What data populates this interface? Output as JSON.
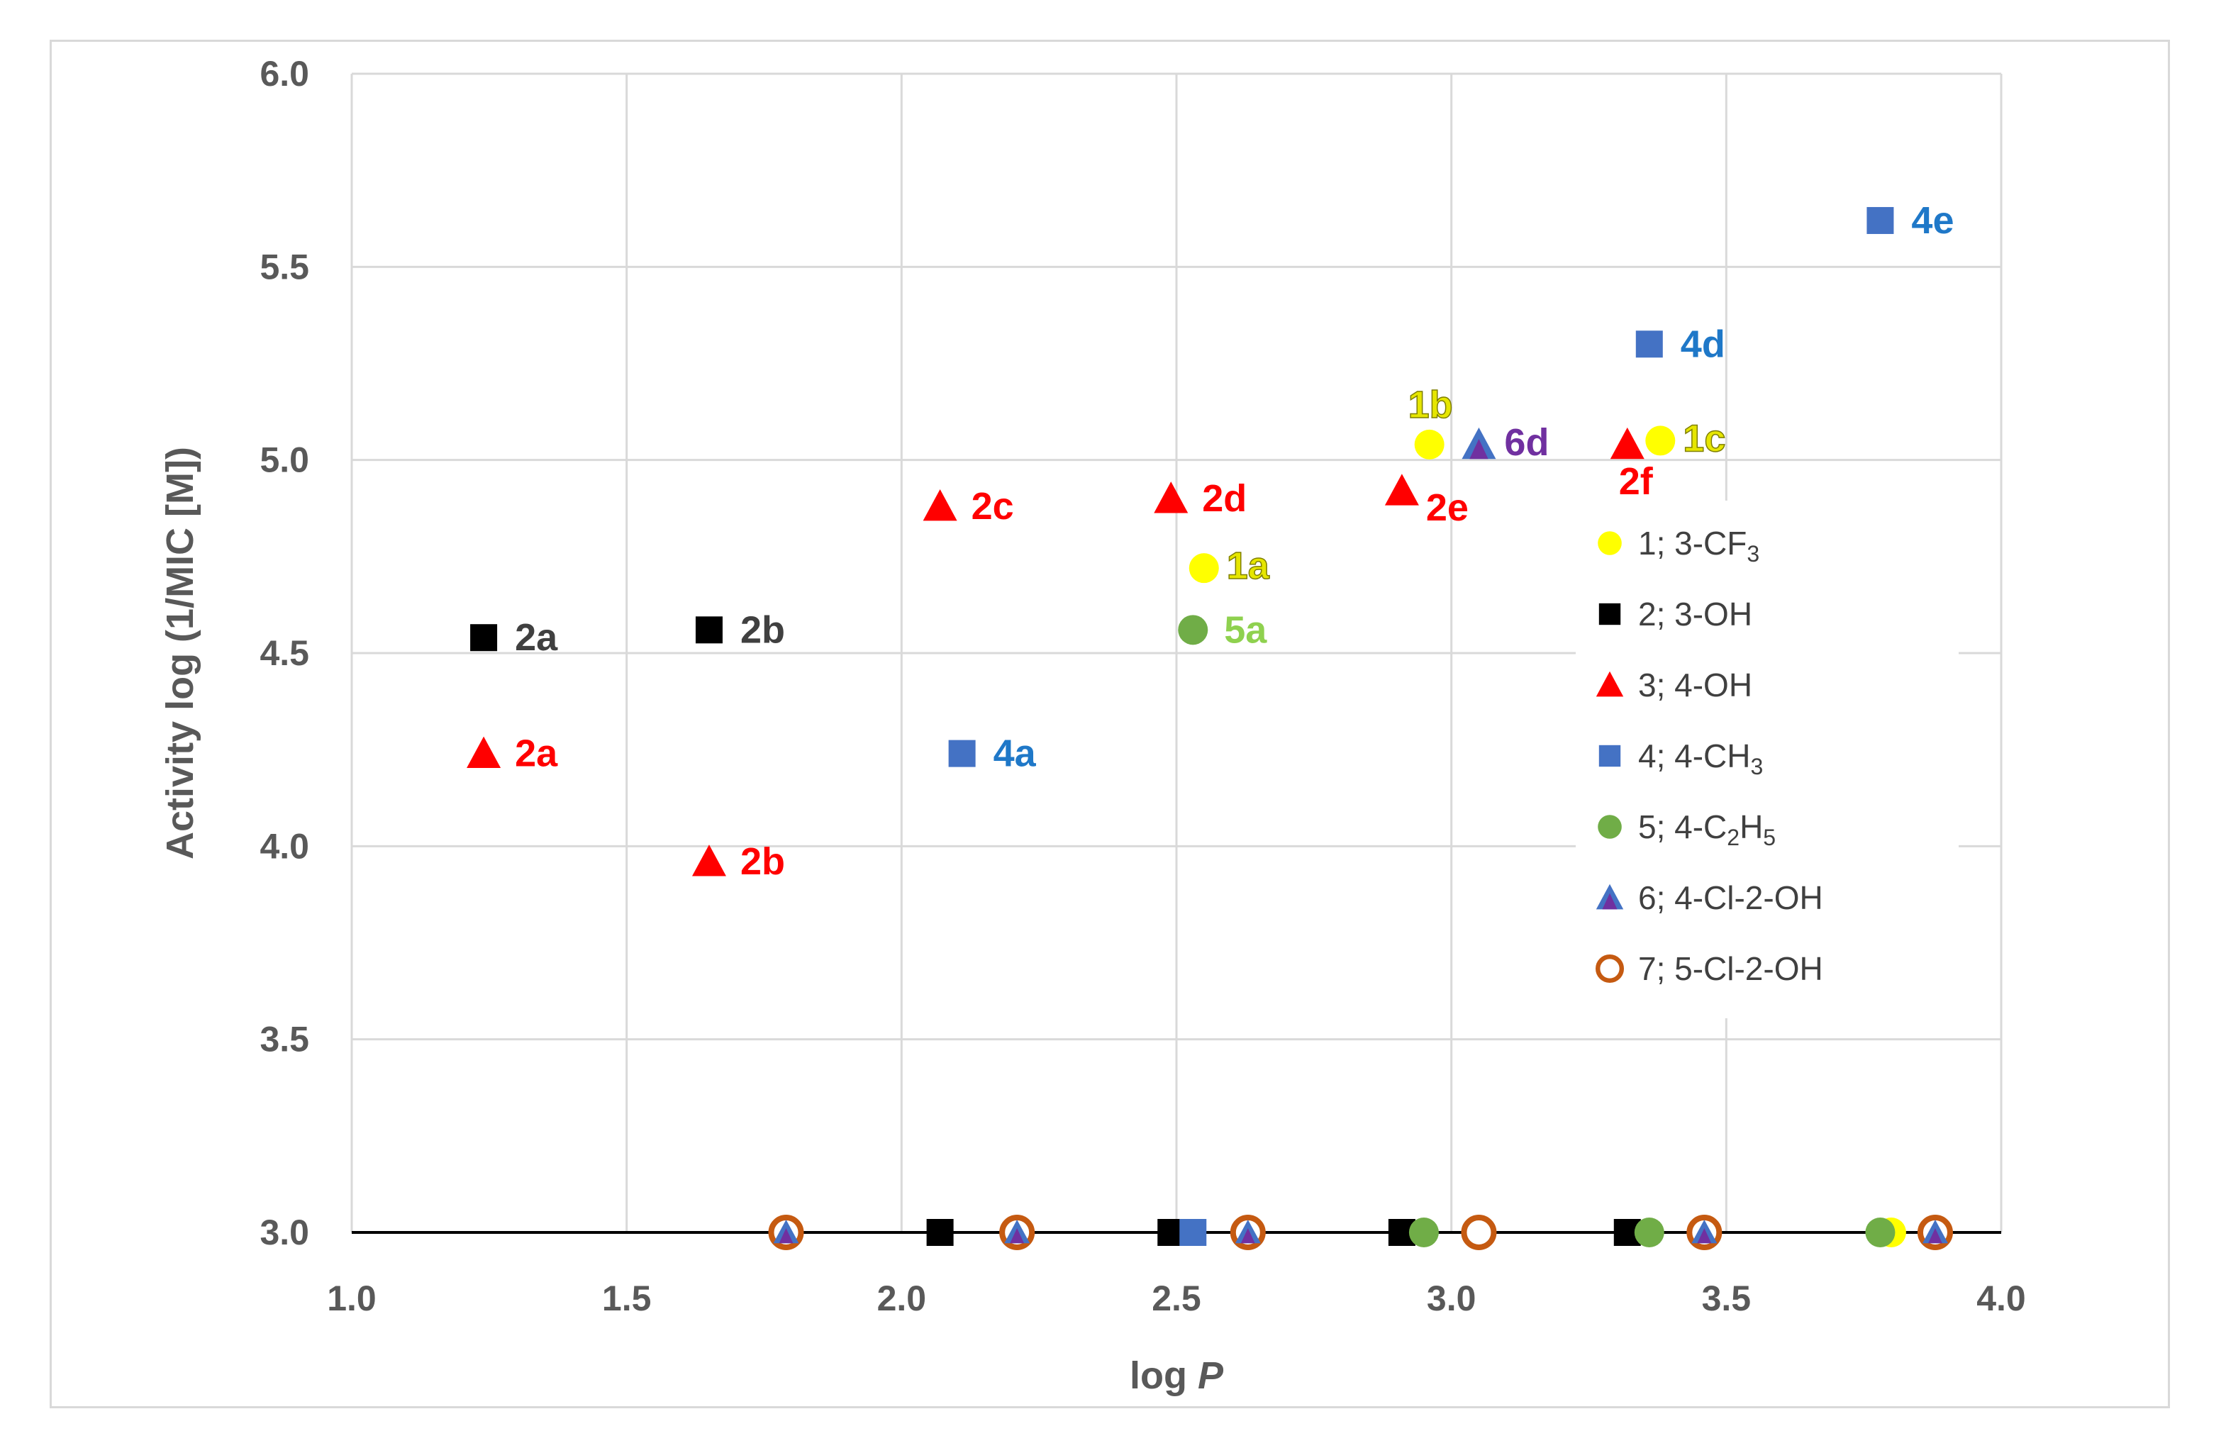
{
  "chart_data": {
    "type": "scatter",
    "title": "",
    "xlabel": "log",
    "xlabel_italic": "P",
    "ylabel": "Activity log (1/MIC [M])",
    "xlim": [
      1.0,
      4.0
    ],
    "ylim": [
      3.0,
      6.0
    ],
    "x_ticks": [
      "1.0",
      "1.5",
      "2.0",
      "2.5",
      "3.0",
      "3.5",
      "4.0"
    ],
    "y_ticks": [
      "3.0",
      "3.5",
      "4.0",
      "4.5",
      "5.0",
      "5.5",
      "6.0"
    ],
    "grid": true,
    "legend_position": "right",
    "series": [
      {
        "name": "1; 3-CF",
        "sub": "3",
        "tail": "",
        "marker": "circle",
        "color": "#ffff00",
        "points": [
          {
            "x": 2.55,
            "y": 4.72,
            "label": "1a"
          },
          {
            "x": 2.96,
            "y": 5.04,
            "label": "1b"
          },
          {
            "x": 3.38,
            "y": 5.05,
            "label": "1c"
          },
          {
            "x": 3.8,
            "y": 3.0,
            "label": ""
          }
        ]
      },
      {
        "name": "2; 3-OH",
        "sub": "",
        "tail": "",
        "marker": "square",
        "color": "#000000",
        "points": [
          {
            "x": 1.24,
            "y": 4.54,
            "label": "2a"
          },
          {
            "x": 1.65,
            "y": 4.56,
            "label": "2b"
          },
          {
            "x": 2.07,
            "y": 3.0,
            "label": ""
          },
          {
            "x": 2.49,
            "y": 3.0,
            "label": ""
          },
          {
            "x": 2.91,
            "y": 3.0,
            "label": ""
          },
          {
            "x": 3.32,
            "y": 3.0,
            "label": ""
          }
        ]
      },
      {
        "name": "3; 4-OH",
        "sub": "",
        "tail": "",
        "marker": "triangle",
        "color": "#ff0000",
        "points": [
          {
            "x": 1.24,
            "y": 4.24,
            "label": "2a"
          },
          {
            "x": 1.65,
            "y": 3.96,
            "label": "2b"
          },
          {
            "x": 2.07,
            "y": 4.88,
            "label": "2c"
          },
          {
            "x": 2.49,
            "y": 4.9,
            "label": "2d"
          },
          {
            "x": 2.91,
            "y": 4.92,
            "label": "2e"
          },
          {
            "x": 3.32,
            "y": 5.04,
            "label": "2f"
          }
        ]
      },
      {
        "name": "4; 4-CH",
        "sub": "3",
        "tail": "",
        "marker": "square",
        "color": "#4472c4",
        "points": [
          {
            "x": 2.11,
            "y": 4.24,
            "label": "4a"
          },
          {
            "x": 2.53,
            "y": 3.0,
            "label": ""
          },
          {
            "x": 3.36,
            "y": 5.3,
            "label": "4d"
          },
          {
            "x": 3.78,
            "y": 5.62,
            "label": "4e"
          }
        ]
      },
      {
        "name": "5; 4-C",
        "sub": "2",
        "tail": "H",
        "sub2": "5",
        "marker": "circle",
        "color": "#70ad47",
        "points": [
          {
            "x": 2.53,
            "y": 4.56,
            "label": "5a"
          },
          {
            "x": 2.95,
            "y": 3.0,
            "label": ""
          },
          {
            "x": 3.36,
            "y": 3.0,
            "label": ""
          },
          {
            "x": 3.78,
            "y": 3.0,
            "label": ""
          }
        ]
      },
      {
        "name": "6; 4-Cl-2-OH",
        "sub": "",
        "tail": "",
        "marker": "triangle",
        "color": "#7030a0",
        "fill2": "#4472c4",
        "points": [
          {
            "x": 1.79,
            "y": 3.0,
            "label": ""
          },
          {
            "x": 2.21,
            "y": 3.0,
            "label": ""
          },
          {
            "x": 2.63,
            "y": 3.0,
            "label": ""
          },
          {
            "x": 3.05,
            "y": 5.04,
            "label": "6d"
          },
          {
            "x": 3.46,
            "y": 3.0,
            "label": ""
          },
          {
            "x": 3.88,
            "y": 3.0,
            "label": ""
          }
        ]
      },
      {
        "name": "7; 5-Cl-2-OH",
        "sub": "",
        "tail": "",
        "marker": "open-circle",
        "color": "#c55a11",
        "points": [
          {
            "x": 1.79,
            "y": 3.0,
            "label": ""
          },
          {
            "x": 2.21,
            "y": 3.0,
            "label": ""
          },
          {
            "x": 2.63,
            "y": 3.0,
            "label": ""
          },
          {
            "x": 3.05,
            "y": 3.0,
            "label": ""
          },
          {
            "x": 3.46,
            "y": 3.0,
            "label": ""
          },
          {
            "x": 3.88,
            "y": 3.0,
            "label": ""
          }
        ]
      }
    ],
    "label_colors": {
      "1": "#e6e600",
      "2": "#404040",
      "3": "#ff0000",
      "4": "#1f78c8",
      "5": "#8fd14f",
      "6": "#7030a0"
    }
  }
}
